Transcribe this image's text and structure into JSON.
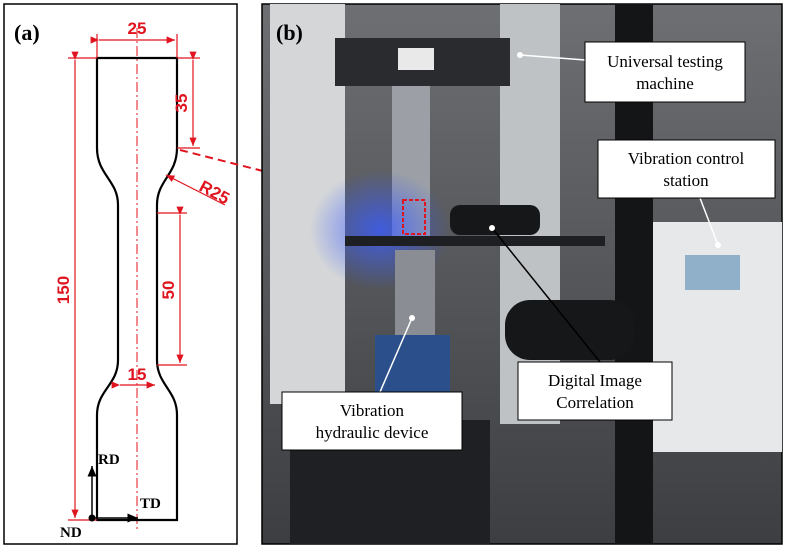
{
  "panels": {
    "a": {
      "label": "(a)",
      "dimensions": {
        "width": "25",
        "shoulder": "35",
        "radius": "R25",
        "length": "150",
        "gauge_length": "50",
        "gauge_width": "15"
      },
      "axes": {
        "rd": "RD",
        "td": "TD",
        "nd": "ND"
      }
    },
    "b": {
      "label": "(b)",
      "callouts": [
        {
          "lines": [
            "Universal testing",
            "machine"
          ]
        },
        {
          "lines": [
            "Vibration control",
            "station"
          ]
        },
        {
          "lines": [
            "Digital Image",
            "Correlation"
          ]
        },
        {
          "lines": [
            "Vibration",
            "hydraulic device"
          ]
        }
      ]
    }
  }
}
